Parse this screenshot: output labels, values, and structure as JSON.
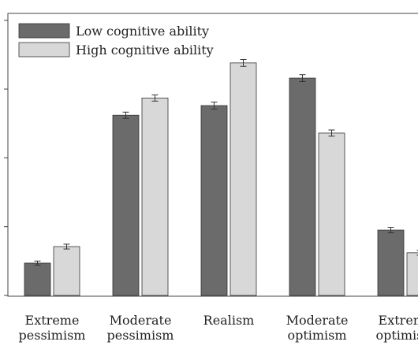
{
  "chart_data": {
    "type": "bar",
    "categories": [
      [
        "Extreme",
        "pessimism"
      ],
      [
        "Moderate",
        "pessimism"
      ],
      [
        "Realism"
      ],
      [
        "Moderate",
        "optimism"
      ],
      [
        "Extreme",
        "optimism"
      ]
    ],
    "series": [
      {
        "name": "Low cognitive ability",
        "color": "#6b6b6b",
        "values": [
          4.7,
          26.2,
          27.6,
          31.6,
          9.5
        ],
        "err": [
          0.3,
          0.45,
          0.5,
          0.5,
          0.4
        ]
      },
      {
        "name": "High cognitive ability",
        "color": "#d8d8d8",
        "values": [
          7.1,
          28.7,
          33.8,
          23.6,
          6.2
        ],
        "err": [
          0.35,
          0.45,
          0.5,
          0.45,
          0.35
        ]
      }
    ],
    "ylim": [
      0,
      41
    ],
    "yticks": [
      0,
      10,
      20,
      30,
      40
    ],
    "show_y_tick_labels": false,
    "grid": false,
    "legend_position": "top-left"
  }
}
